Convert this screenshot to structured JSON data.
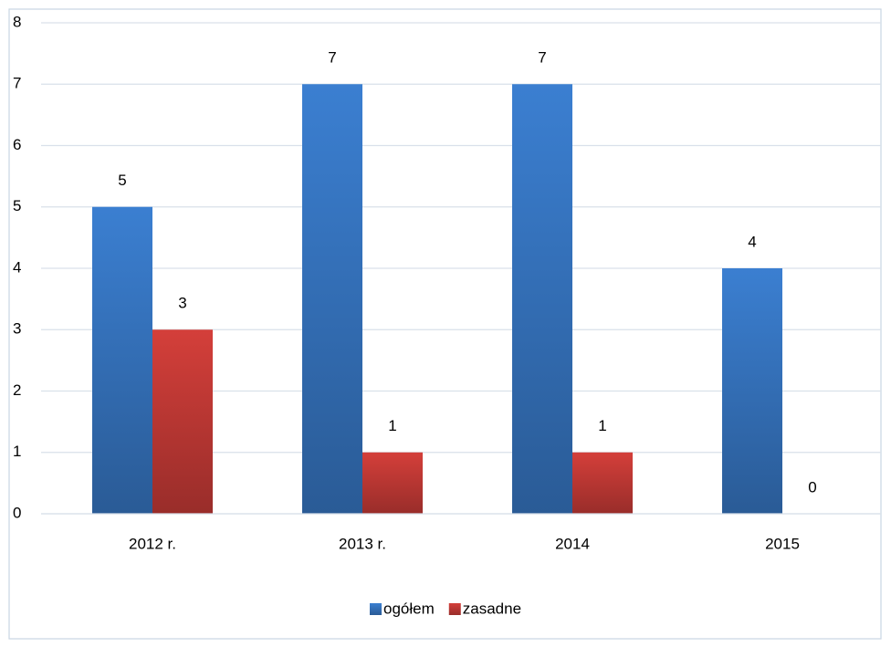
{
  "chart_data": {
    "type": "bar",
    "categories": [
      "2012 r.",
      "2013 r.",
      "2014",
      "2015"
    ],
    "series": [
      {
        "name": "ogółem",
        "color": "#3b7fd1",
        "values": [
          5,
          7,
          7,
          4
        ]
      },
      {
        "name": "zasadne",
        "color": "#d43f3a",
        "values": [
          3,
          1,
          1,
          0
        ]
      }
    ],
    "ylim": [
      0,
      8
    ],
    "yticks": [
      0,
      1,
      2,
      3,
      4,
      5,
      6,
      7,
      8
    ],
    "grid": true,
    "legend": "bottom"
  }
}
